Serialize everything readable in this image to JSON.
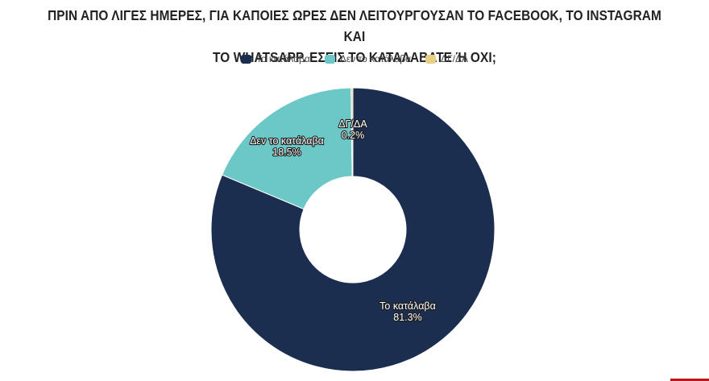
{
  "chart_data": {
    "type": "pie",
    "title_lines": [
      "ΠΡΙΝ ΑΠΟ ΛΙΓΕΣ ΗΜΕΡΕΣ, ΓΙΑ ΚΑΠΟΙΕΣ ΩΡΕΣ ΔΕΝ ΛΕΙΤΟΥΡΓΟΥΣΑΝ ΤΟ FACEBOOK, ΤΟ INSTAGRAM ΚΑΙ",
      "ΤΟ WHATSAPP. ΕΣΕΙΣ ΤΟ ΚΑΤΑΛΑΒΑΤΕ Ή ΟΧΙ;"
    ],
    "legend_position": "top-center",
    "slices": [
      {
        "label": "Το κατάλαβα",
        "value": 81.3,
        "value_label": "81.3%",
        "color": "#1b2e50"
      },
      {
        "label": "Δεν το κατάλαβα",
        "value": 18.5,
        "value_label": "18.5%",
        "color": "#6cc8c6"
      },
      {
        "label": "ΔΓ/ΔΑ",
        "value": 0.2,
        "value_label": "0.2%",
        "color": "#e8cf88"
      }
    ]
  }
}
